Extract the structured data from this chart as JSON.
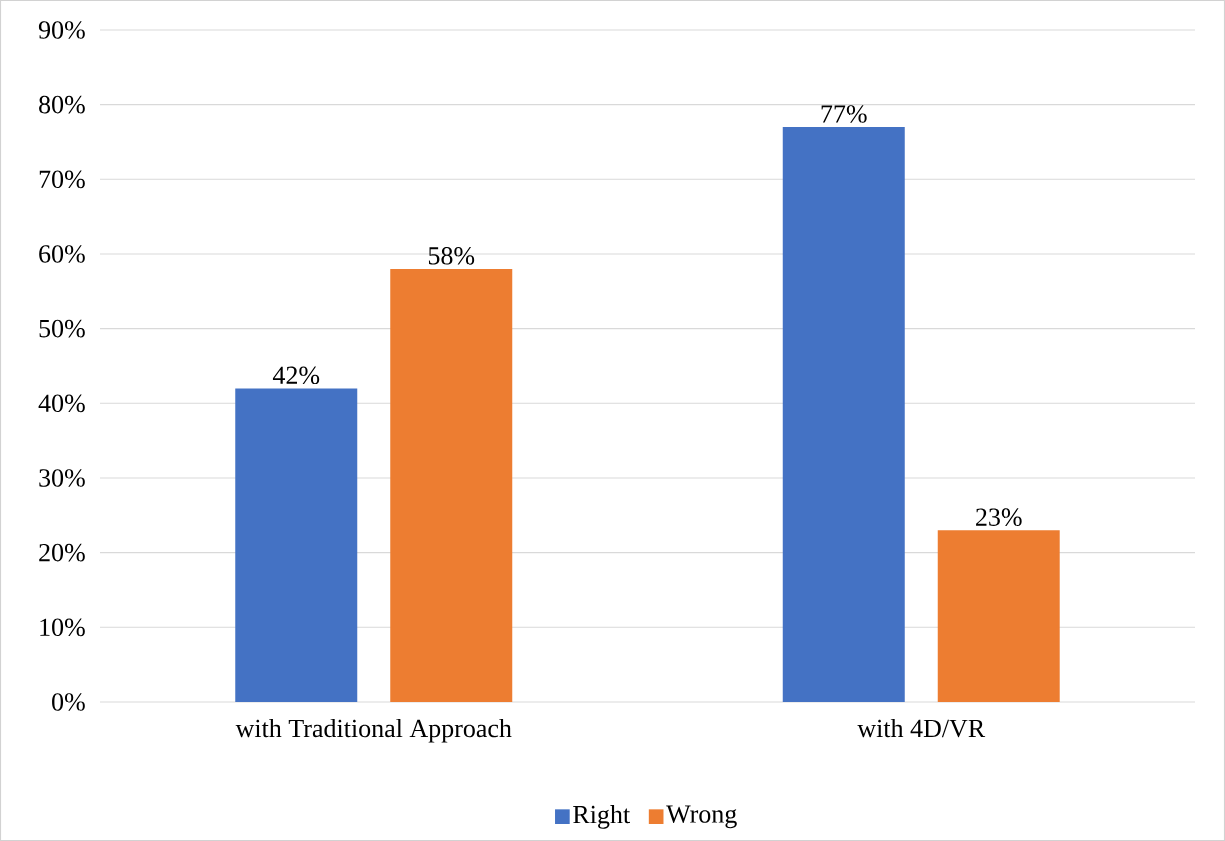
{
  "chart_data": {
    "type": "bar",
    "categories": [
      "with Traditional Approach",
      "with 4D/VR"
    ],
    "series": [
      {
        "name": "Right",
        "color": "#4472c4",
        "values": [
          42,
          77
        ],
        "value_labels": [
          "42%",
          "77%"
        ]
      },
      {
        "name": "Wrong",
        "color": "#ed7d31",
        "values": [
          58,
          23
        ],
        "value_labels": [
          "58%",
          "23%"
        ]
      }
    ],
    "ylim": [
      0,
      90
    ],
    "yticks": [
      {
        "value": 0,
        "label": "0%"
      },
      {
        "value": 10,
        "label": "10%"
      },
      {
        "value": 20,
        "label": "20%"
      },
      {
        "value": 30,
        "label": "30%"
      },
      {
        "value": 40,
        "label": "40%"
      },
      {
        "value": 50,
        "label": "50%"
      },
      {
        "value": 60,
        "label": "60%"
      },
      {
        "value": 70,
        "label": "70%"
      },
      {
        "value": 80,
        "label": "80%"
      },
      {
        "value": 90,
        "label": "90%"
      }
    ],
    "grid": "y",
    "legend": "bottom"
  }
}
